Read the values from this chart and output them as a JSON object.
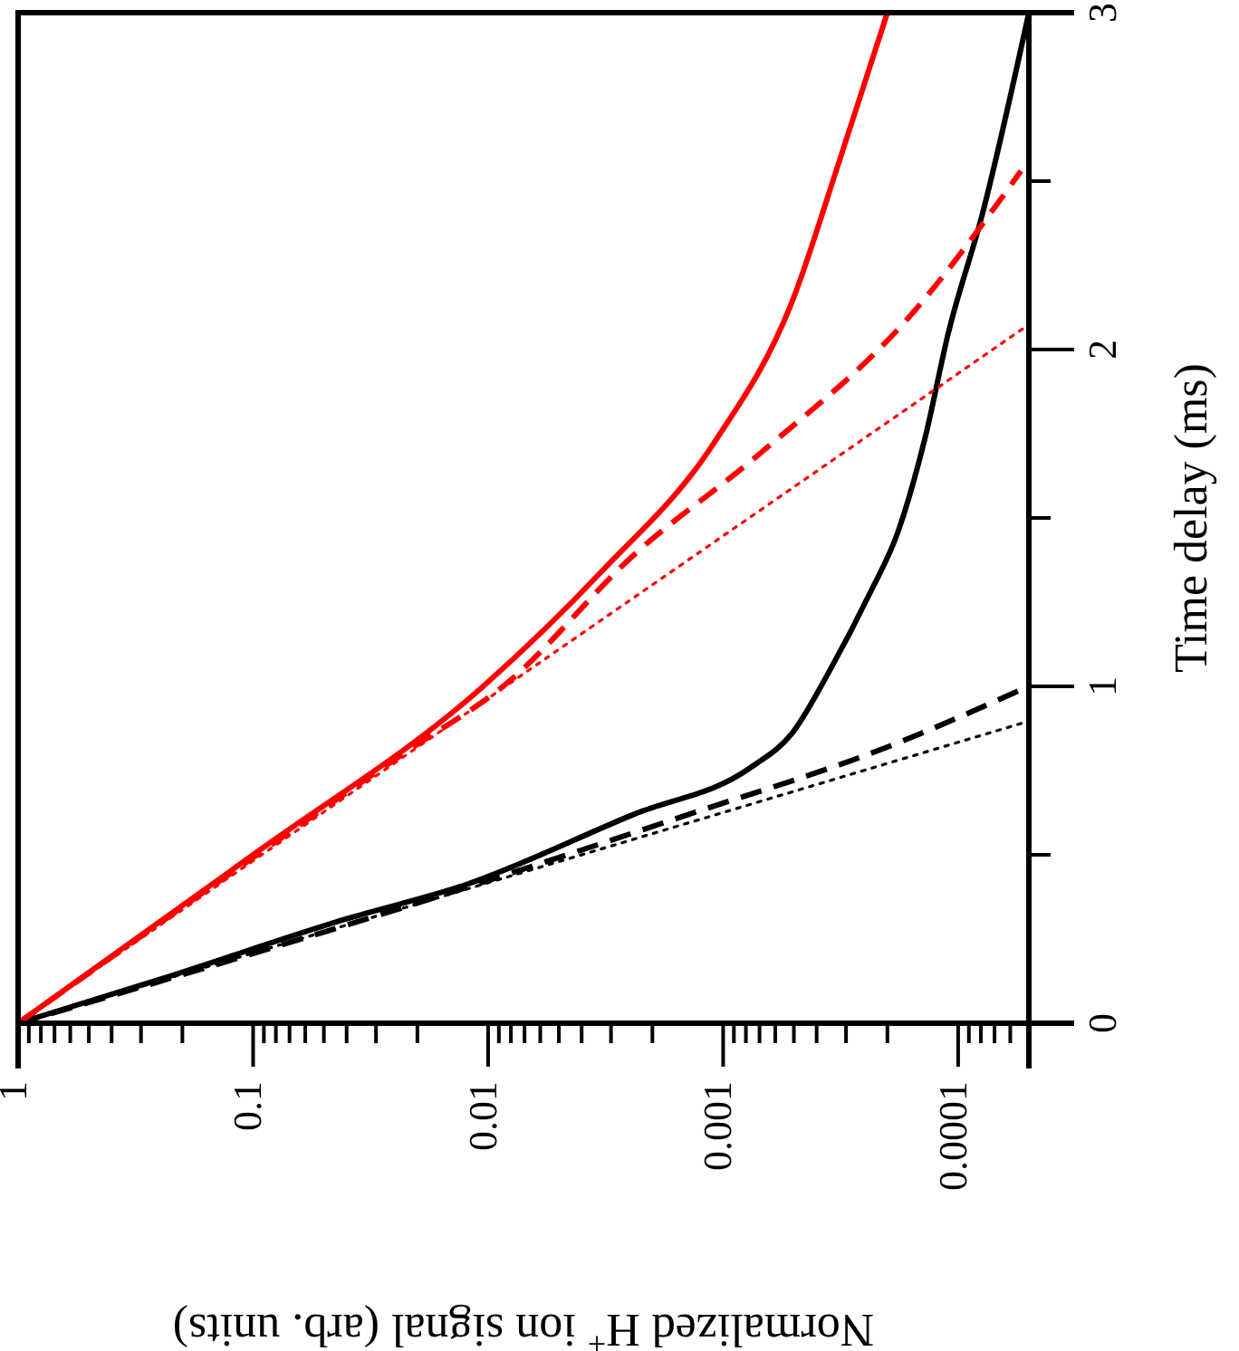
{
  "chart_data": {
    "type": "line",
    "xlabel": "Normalized H$^{+}$ ion signal (arb. units)",
    "ylabel": "Time delay (ms)",
    "log": "x",
    "ylim": [
      0,
      3
    ],
    "yticks": [
      0,
      {
        "value": 0.5,
        "label": null
      },
      1,
      {
        "value": 1.5,
        "label": null
      },
      2,
      {
        "value": 2.5,
        "label": null
      },
      3
    ],
    "xlim": [
      1,
      5e-05
    ],
    "xticks": [
      1,
      {
        "value": 0.9,
        "label": null
      },
      {
        "value": 0.8,
        "label": null
      },
      {
        "value": 0.7,
        "label": null
      },
      {
        "value": 0.6,
        "label": null
      },
      {
        "value": 0.5,
        "label": null
      },
      {
        "value": 0.4,
        "label": null
      },
      {
        "value": 0.3,
        "label": null
      },
      {
        "value": 0.2,
        "label": null
      },
      0.1,
      {
        "value": 0.09,
        "label": null
      },
      {
        "value": 0.08,
        "label": null
      },
      {
        "value": 0.07,
        "label": null
      },
      {
        "value": 0.06,
        "label": null
      },
      {
        "value": 0.05,
        "label": null
      },
      {
        "value": 0.04,
        "label": null
      },
      {
        "value": 0.03,
        "label": null
      },
      {
        "value": 0.02,
        "label": null
      },
      0.01,
      {
        "value": 0.009,
        "label": null
      },
      {
        "value": 0.008,
        "label": null
      },
      {
        "value": 0.007,
        "label": null
      },
      {
        "value": 0.006,
        "label": null
      },
      {
        "value": 0.005,
        "label": null
      },
      {
        "value": 0.004,
        "label": null
      },
      {
        "value": 0.003,
        "label": null
      },
      {
        "value": 0.002,
        "label": null
      },
      0.001,
      {
        "value": 0.0009,
        "label": null
      },
      {
        "value": 0.0008,
        "label": null
      },
      {
        "value": 0.0007,
        "label": null
      },
      {
        "value": 0.0006,
        "label": null
      },
      {
        "value": 0.0005,
        "label": null
      },
      {
        "value": 0.0004,
        "label": null
      },
      {
        "value": 0.0003,
        "label": null
      },
      {
        "value": 0.0002,
        "label": null
      },
      0.0001,
      {
        "value": 9e-05,
        "label": null
      },
      {
        "value": 8e-05,
        "label": null
      },
      {
        "value": 7e-05,
        "label": null
      },
      {
        "value": 6e-05,
        "label": null
      },
      {
        "value": 5e-05,
        "label": null
      }
    ],
    "series": [
      {
        "color": "#000000",
        "line_style": "solid",
        "x": [
          1,
          0.25,
          0.04,
          0.0126,
          0.0024,
          0.00076,
          0.00051,
          0.00035,
          0.00024,
          0.00018,
          0.000138,
          0.00011,
          7.9e-05,
          5e-05
        ],
        "values": [
          0,
          0.13,
          0.31,
          0.41,
          0.62,
          0.76,
          0.86,
          1.05,
          1.27,
          1.46,
          1.74,
          2.05,
          2.4,
          3
        ]
      },
      {
        "color": "#000000",
        "line_style": "dashed",
        "x": [
          1,
          0.0115,
          0.0014,
          0.0002,
          5.4e-05
        ],
        "values": [
          0,
          0.41,
          0.62,
          0.82,
          0.99
        ]
      },
      {
        "color": "#000000",
        "line_style": "dotted",
        "x": [
          1,
          5.1e-05
        ],
        "values": [
          0,
          0.895
        ]
      },
      {
        "color": "#ff0000",
        "line_style": "solid",
        "x": [
          1,
          0.1,
          0.0105,
          0.0033,
          0.0011,
          0.00051,
          0.00032,
          0.0002
        ],
        "values": [
          0,
          0.5,
          1.0,
          1.34,
          1.72,
          2.14,
          2.56,
          3
        ]
      },
      {
        "color": "#ff0000",
        "line_style": "dashed",
        "x": [
          1,
          0.023,
          0.0083,
          0.0024,
          0.0007,
          0.00016,
          5.4e-05
        ],
        "values": [
          0,
          0.8,
          1.01,
          1.39,
          1.69,
          2.1,
          2.53
        ]
      },
      {
        "color": "#ff0000",
        "line_style": "dotted",
        "x": [
          1,
          5.1e-05
        ],
        "values": [
          0,
          2.07
        ]
      }
    ]
  }
}
